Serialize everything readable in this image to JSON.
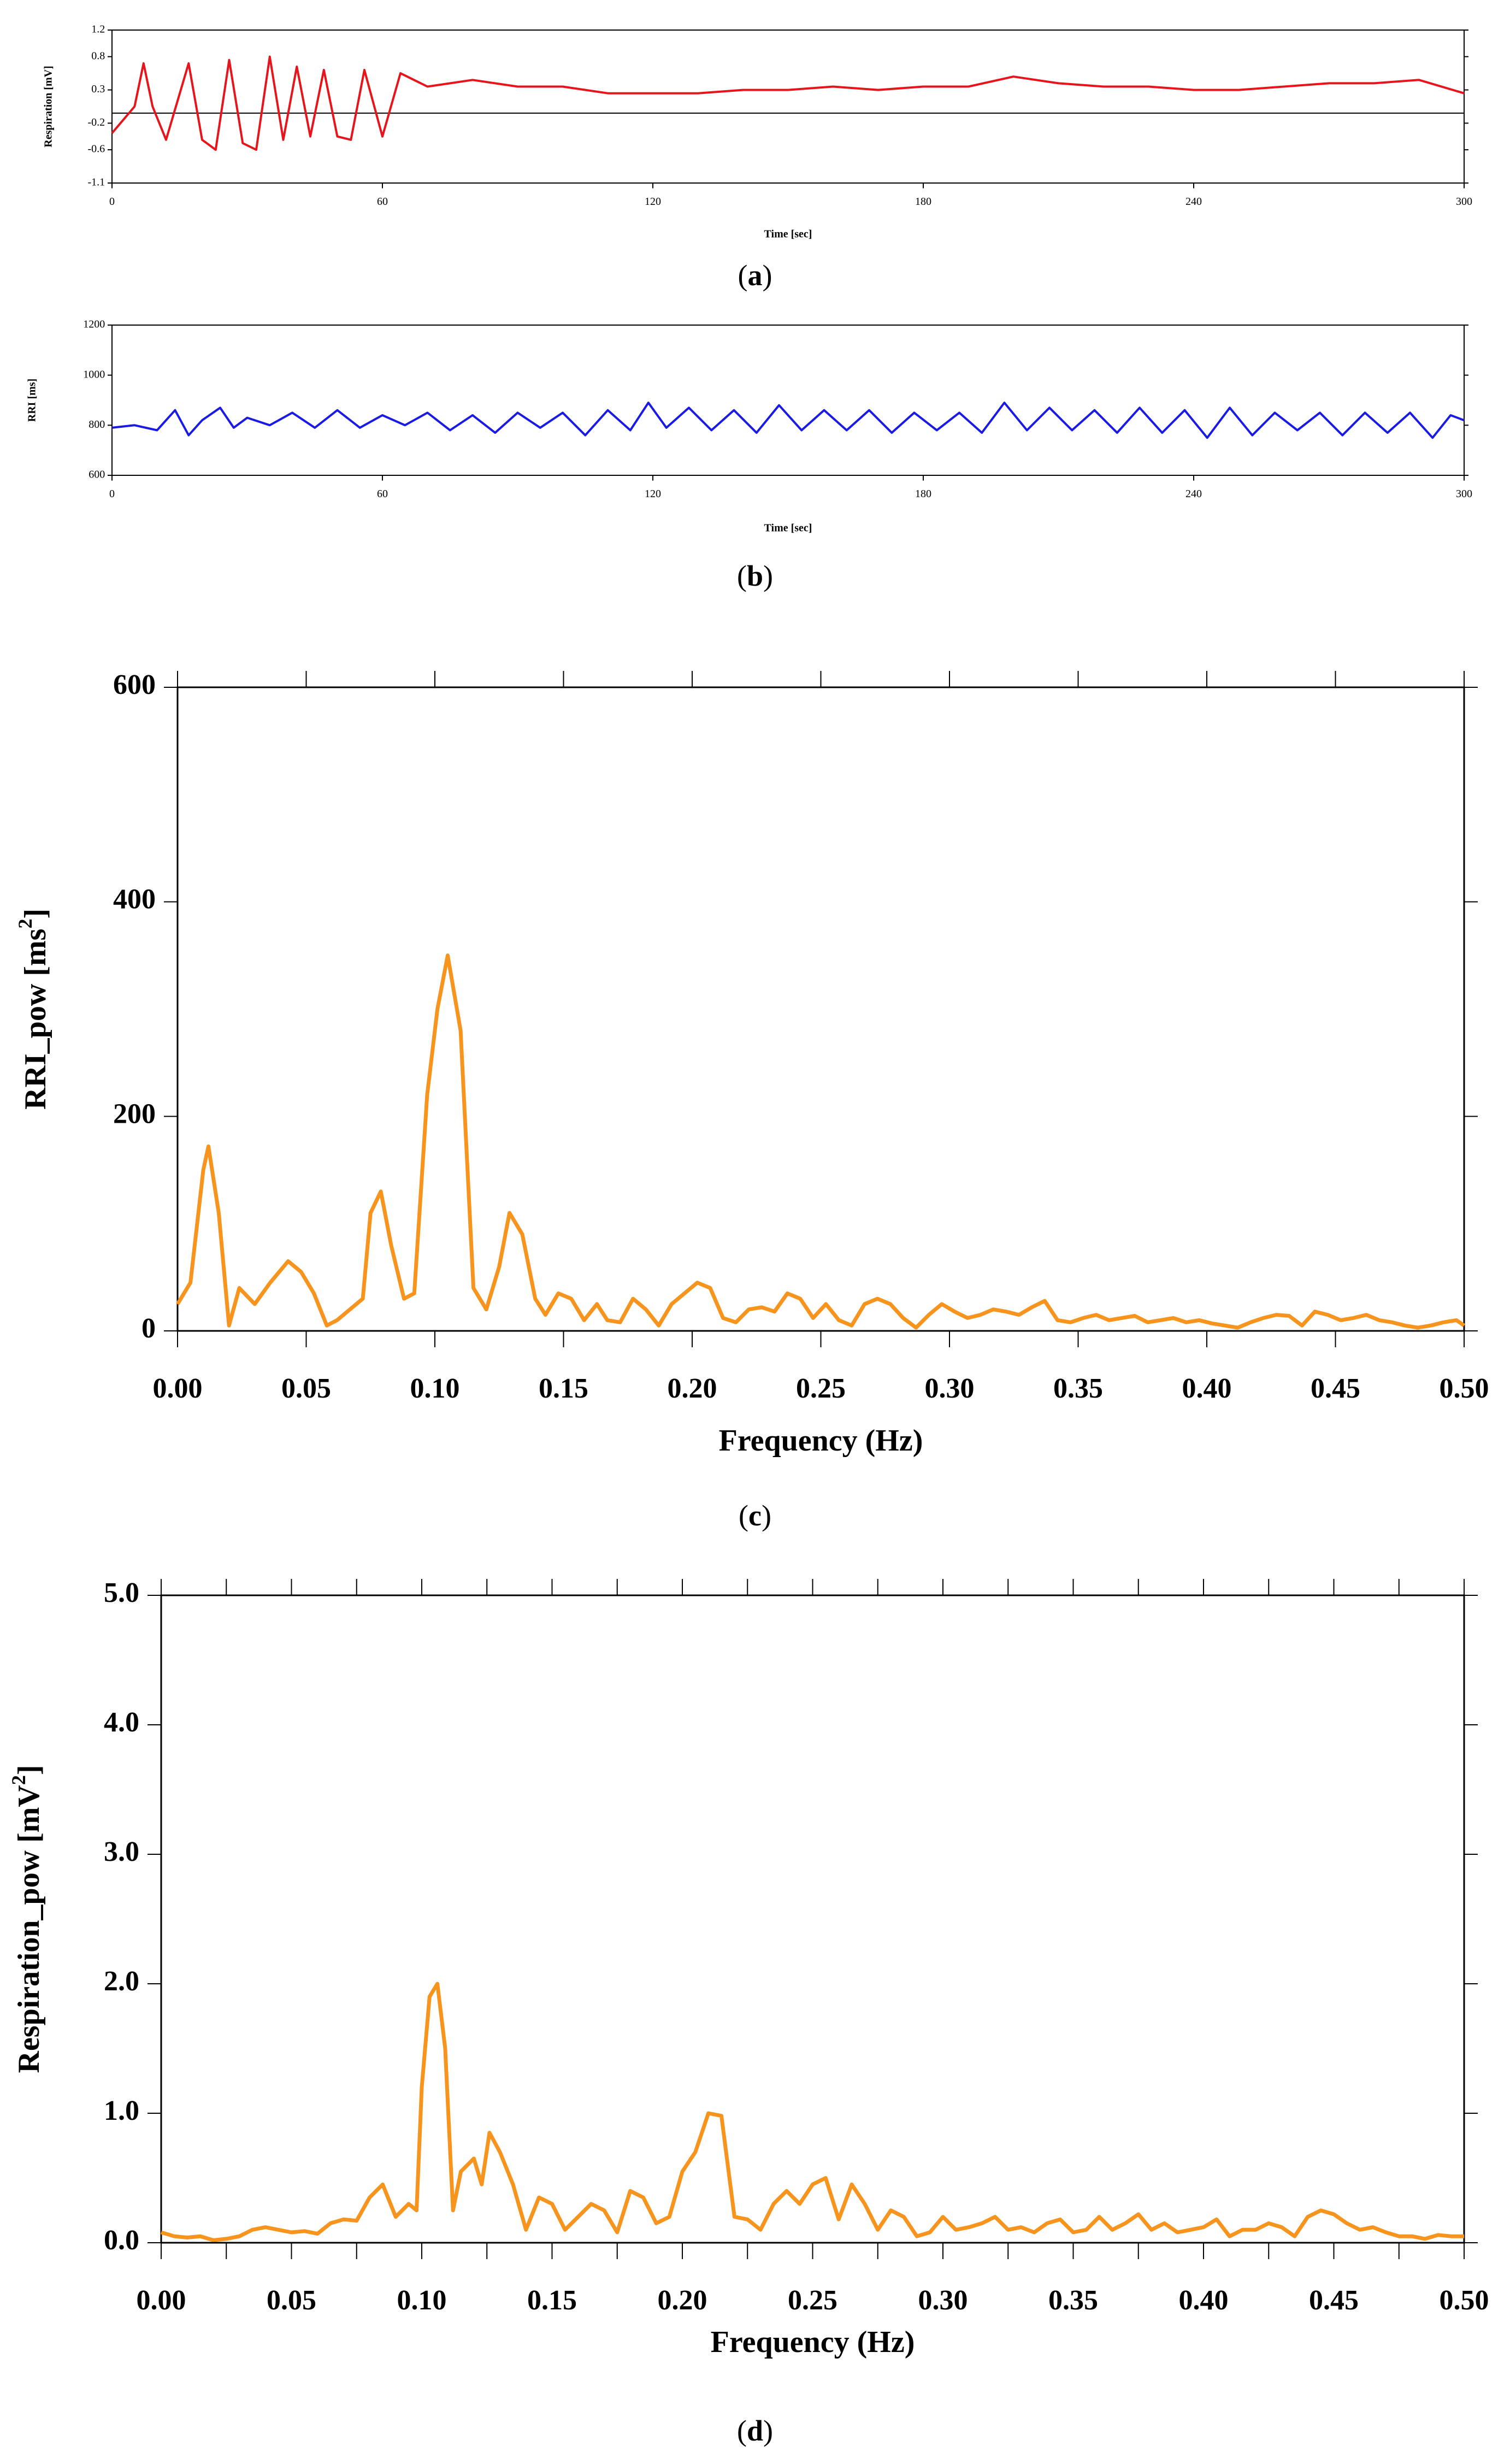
{
  "chart_data": [
    {
      "panel": "a",
      "caption_label": "a",
      "type": "line",
      "title": "",
      "xlabel": "Time [sec]",
      "ylabel": "Respiration [mV]",
      "xlim": [
        0,
        300
      ],
      "ylim": [
        -1.1,
        1.2
      ],
      "x_ticks": [
        0,
        60,
        120,
        180,
        240,
        300
      ],
      "y_ticks": [
        1.2,
        0.8,
        0.3,
        -0.2,
        -0.6,
        -1.1
      ],
      "y_tick_labels": [
        "1.2",
        "0.8",
        "0.3",
        "-0.2",
        "-0.6",
        "-1.1"
      ],
      "baseline": -0.05,
      "line_color": "#e8141c",
      "sampled_points": {
        "x": [
          0,
          5,
          7,
          9,
          12,
          17,
          20,
          23,
          26,
          29,
          32,
          35,
          38,
          41,
          44,
          47,
          50,
          53,
          56,
          60,
          64,
          70,
          80,
          90,
          100,
          110,
          120,
          130,
          140,
          150,
          160,
          170,
          180,
          190,
          200,
          210,
          220,
          230,
          240,
          250,
          260,
          270,
          280,
          290,
          300
        ],
        "y": [
          -0.35,
          0.05,
          0.7,
          0.05,
          -0.45,
          0.7,
          -0.45,
          -0.6,
          0.75,
          -0.5,
          -0.6,
          0.8,
          -0.45,
          0.65,
          -0.4,
          0.6,
          -0.4,
          -0.45,
          0.6,
          -0.4,
          0.55,
          0.35,
          0.45,
          0.35,
          0.35,
          0.25,
          0.25,
          0.25,
          0.3,
          0.3,
          0.35,
          0.3,
          0.35,
          0.35,
          0.5,
          0.4,
          0.35,
          0.35,
          0.3,
          0.3,
          0.35,
          0.4,
          0.4,
          0.45,
          0.25
        ]
      }
    },
    {
      "panel": "b",
      "caption_label": "b",
      "type": "line",
      "title": "",
      "xlabel": "Time [sec]",
      "ylabel": "RRI [ms]",
      "xlim": [
        0,
        300
      ],
      "ylim": [
        600,
        1200
      ],
      "x_ticks": [
        0,
        60,
        120,
        180,
        240,
        300
      ],
      "y_ticks": [
        600,
        800,
        1000,
        1200
      ],
      "line_color": "#1a1ae6",
      "sampled_points": {
        "x": [
          0,
          5,
          10,
          14,
          17,
          20,
          24,
          27,
          30,
          35,
          40,
          45,
          50,
          55,
          60,
          65,
          70,
          75,
          80,
          85,
          90,
          95,
          100,
          105,
          110,
          115,
          119,
          123,
          128,
          133,
          138,
          143,
          148,
          153,
          158,
          163,
          168,
          173,
          178,
          183,
          188,
          193,
          198,
          203,
          208,
          213,
          218,
          223,
          228,
          233,
          238,
          243,
          248,
          253,
          258,
          263,
          268,
          273,
          278,
          283,
          288,
          293,
          297,
          300
        ],
        "y": [
          790,
          800,
          780,
          860,
          760,
          820,
          870,
          790,
          830,
          800,
          850,
          790,
          860,
          790,
          840,
          800,
          850,
          780,
          840,
          770,
          850,
          790,
          850,
          760,
          860,
          780,
          890,
          790,
          870,
          780,
          860,
          770,
          880,
          780,
          860,
          780,
          860,
          770,
          850,
          780,
          850,
          770,
          890,
          780,
          870,
          780,
          860,
          770,
          870,
          770,
          860,
          750,
          870,
          760,
          850,
          780,
          850,
          760,
          850,
          770,
          850,
          750,
          840,
          820
        ]
      }
    },
    {
      "panel": "c",
      "caption_label": "c",
      "type": "line",
      "title": "",
      "xlabel": "Frequency (Hz)",
      "ylabel": "RRI_pow [ms",
      "ylabel_sup": "2",
      "ylabel_end": "]",
      "xlim": [
        0,
        0.5
      ],
      "ylim": [
        0,
        600
      ],
      "x_ticks": [
        0.0,
        0.05,
        0.1,
        0.15,
        0.2,
        0.25,
        0.3,
        0.35,
        0.4,
        0.45,
        0.5
      ],
      "x_tick_labels": [
        "0.00",
        "0.05",
        "0.10",
        "0.15",
        "0.20",
        "0.25",
        "0.30",
        "0.35",
        "0.40",
        "0.45",
        "0.50"
      ],
      "y_ticks": [
        0,
        200,
        400,
        600
      ],
      "y_tick_labels": [
        "0",
        "200",
        "400",
        "600"
      ],
      "line_color": "#f7941d",
      "series": [
        {
          "x": [
            0.0,
            0.005,
            0.01,
            0.012,
            0.016,
            0.02,
            0.024,
            0.03,
            0.036,
            0.043,
            0.048,
            0.053,
            0.058,
            0.062,
            0.067,
            0.072,
            0.075,
            0.079,
            0.083,
            0.088,
            0.092,
            0.097,
            0.101,
            0.105,
            0.11,
            0.115,
            0.12,
            0.125,
            0.129,
            0.134,
            0.139,
            0.143,
            0.148,
            0.153,
            0.158,
            0.163,
            0.167,
            0.172,
            0.177,
            0.182,
            0.187,
            0.192,
            0.197,
            0.202,
            0.207,
            0.212,
            0.217,
            0.222,
            0.227,
            0.232,
            0.237,
            0.242,
            0.247,
            0.252,
            0.257,
            0.262,
            0.267,
            0.272,
            0.277,
            0.282,
            0.287,
            0.292,
            0.297,
            0.302,
            0.307,
            0.312,
            0.317,
            0.322,
            0.327,
            0.332,
            0.337,
            0.342,
            0.347,
            0.352,
            0.357,
            0.362,
            0.367,
            0.372,
            0.377,
            0.382,
            0.387,
            0.392,
            0.397,
            0.402,
            0.407,
            0.412,
            0.417,
            0.422,
            0.427,
            0.432,
            0.437,
            0.442,
            0.447,
            0.452,
            0.457,
            0.462,
            0.467,
            0.472,
            0.477,
            0.482,
            0.487,
            0.492,
            0.497,
            0.5
          ],
          "y": [
            25,
            45,
            150,
            172,
            110,
            5,
            40,
            25,
            45,
            65,
            55,
            35,
            5,
            10,
            20,
            30,
            110,
            130,
            80,
            30,
            35,
            220,
            300,
            350,
            280,
            40,
            20,
            60,
            110,
            90,
            30,
            15,
            35,
            30,
            10,
            25,
            10,
            8,
            30,
            20,
            5,
            25,
            35,
            45,
            40,
            12,
            8,
            20,
            22,
            18,
            35,
            30,
            12,
            25,
            10,
            5,
            25,
            30,
            25,
            12,
            3,
            15,
            25,
            18,
            12,
            15,
            20,
            18,
            15,
            22,
            28,
            10,
            8,
            12,
            15,
            10,
            12,
            14,
            8,
            10,
            12,
            8,
            10,
            7,
            5,
            3,
            8,
            12,
            15,
            14,
            5,
            18,
            15,
            10,
            12,
            15,
            10,
            8,
            5,
            3,
            5,
            8,
            10,
            5
          ]
        }
      ]
    },
    {
      "panel": "d",
      "caption_label": "d",
      "type": "line",
      "title": "",
      "xlabel": "Frequency (Hz)",
      "ylabel": "Respiration_pow [mV",
      "ylabel_sup": "2",
      "ylabel_end": "]",
      "xlim": [
        0,
        0.5
      ],
      "ylim": [
        0,
        5.0
      ],
      "x_ticks": [
        0.0,
        0.05,
        0.1,
        0.15,
        0.2,
        0.25,
        0.3,
        0.35,
        0.4,
        0.45,
        0.5
      ],
      "x_tick_labels": [
        "0.00",
        "0.05",
        "0.10",
        "0.15",
        "0.20",
        "0.25",
        "0.30",
        "0.35",
        "0.40",
        "0.45",
        "0.50"
      ],
      "y_ticks": [
        0.0,
        1.0,
        2.0,
        3.0,
        4.0,
        5.0
      ],
      "y_tick_labels": [
        "0.0",
        "1.0",
        "2.0",
        "3.0",
        "4.0",
        "5.0"
      ],
      "line_color": "#f7941d",
      "series": [
        {
          "x": [
            0.0,
            0.005,
            0.01,
            0.015,
            0.02,
            0.025,
            0.03,
            0.035,
            0.04,
            0.045,
            0.05,
            0.055,
            0.06,
            0.065,
            0.07,
            0.075,
            0.08,
            0.085,
            0.09,
            0.095,
            0.098,
            0.1,
            0.103,
            0.106,
            0.109,
            0.112,
            0.115,
            0.12,
            0.123,
            0.126,
            0.13,
            0.135,
            0.14,
            0.145,
            0.15,
            0.155,
            0.16,
            0.165,
            0.17,
            0.175,
            0.18,
            0.185,
            0.19,
            0.195,
            0.2,
            0.205,
            0.21,
            0.215,
            0.22,
            0.225,
            0.23,
            0.235,
            0.24,
            0.245,
            0.25,
            0.255,
            0.26,
            0.265,
            0.27,
            0.275,
            0.28,
            0.285,
            0.29,
            0.295,
            0.3,
            0.305,
            0.31,
            0.315,
            0.32,
            0.325,
            0.33,
            0.335,
            0.34,
            0.345,
            0.35,
            0.355,
            0.36,
            0.365,
            0.37,
            0.375,
            0.38,
            0.385,
            0.39,
            0.395,
            0.4,
            0.405,
            0.41,
            0.415,
            0.42,
            0.425,
            0.43,
            0.435,
            0.44,
            0.445,
            0.45,
            0.455,
            0.46,
            0.465,
            0.47,
            0.475,
            0.48,
            0.485,
            0.49,
            0.495,
            0.5
          ],
          "y": [
            0.08,
            0.05,
            0.04,
            0.05,
            0.02,
            0.03,
            0.05,
            0.1,
            0.12,
            0.1,
            0.08,
            0.09,
            0.07,
            0.15,
            0.18,
            0.17,
            0.35,
            0.45,
            0.2,
            0.3,
            0.25,
            1.2,
            1.9,
            2.0,
            1.5,
            0.25,
            0.55,
            0.65,
            0.45,
            0.85,
            0.7,
            0.45,
            0.1,
            0.35,
            0.3,
            0.1,
            0.2,
            0.3,
            0.25,
            0.08,
            0.4,
            0.35,
            0.15,
            0.2,
            0.55,
            0.7,
            1.0,
            0.98,
            0.2,
            0.18,
            0.1,
            0.3,
            0.4,
            0.3,
            0.45,
            0.5,
            0.18,
            0.45,
            0.3,
            0.1,
            0.25,
            0.2,
            0.05,
            0.08,
            0.2,
            0.1,
            0.12,
            0.15,
            0.2,
            0.1,
            0.12,
            0.08,
            0.15,
            0.18,
            0.08,
            0.1,
            0.2,
            0.1,
            0.15,
            0.22,
            0.1,
            0.15,
            0.08,
            0.1,
            0.12,
            0.18,
            0.05,
            0.1,
            0.1,
            0.15,
            0.12,
            0.05,
            0.2,
            0.25,
            0.22,
            0.15,
            0.1,
            0.12,
            0.08,
            0.05,
            0.05,
            0.03,
            0.06,
            0.05,
            0.05
          ]
        }
      ]
    }
  ]
}
